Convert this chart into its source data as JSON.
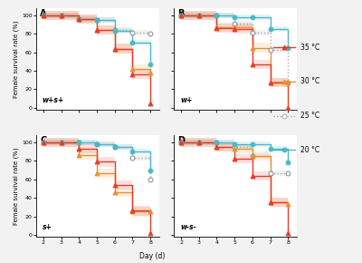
{
  "panels": {
    "A": {
      "label": "w+s+",
      "35": {
        "x": [
          2,
          3,
          4,
          5,
          6,
          7,
          8
        ],
        "y": [
          100,
          100,
          96,
          84,
          64,
          36,
          5
        ]
      },
      "30": {
        "x": [
          2,
          3,
          4,
          5,
          6,
          7,
          8
        ],
        "y": [
          100,
          100,
          96,
          84,
          64,
          42,
          38
        ]
      },
      "25": {
        "x": [
          2,
          3,
          4,
          5,
          6,
          7,
          8
        ],
        "y": [
          100,
          100,
          96,
          95,
          84,
          81,
          80
        ]
      },
      "20": {
        "x": [
          2,
          3,
          4,
          5,
          6,
          7,
          8
        ],
        "y": [
          100,
          100,
          96,
          95,
          83,
          70,
          47
        ]
      }
    },
    "B": {
      "label": "w+",
      "35": {
        "x": [
          2,
          3,
          4,
          5,
          6,
          7,
          8
        ],
        "y": [
          100,
          100,
          86,
          85,
          47,
          27,
          0
        ]
      },
      "30": {
        "x": [
          2,
          3,
          4,
          5,
          6,
          7,
          8
        ],
        "y": [
          100,
          100,
          87,
          87,
          65,
          27,
          27
        ]
      },
      "25": {
        "x": [
          2,
          3,
          4,
          5,
          6,
          7,
          8
        ],
        "y": [
          100,
          100,
          100,
          91,
          81,
          63,
          27
        ]
      },
      "20": {
        "x": [
          2,
          3,
          4,
          5,
          6,
          7,
          8
        ],
        "y": [
          100,
          100,
          100,
          98,
          98,
          85,
          65
        ]
      }
    },
    "C": {
      "label": "s+",
      "35": {
        "x": [
          2,
          3,
          4,
          5,
          6,
          7,
          8
        ],
        "y": [
          100,
          100,
          93,
          79,
          54,
          26,
          2
        ]
      },
      "30": {
        "x": [
          2,
          3,
          4,
          5,
          6,
          7,
          8
        ],
        "y": [
          100,
          100,
          86,
          67,
          46,
          25,
          25
        ]
      },
      "25": {
        "x": [
          2,
          3,
          4,
          5,
          6,
          7,
          8
        ],
        "y": [
          100,
          100,
          100,
          98,
          95,
          83,
          60
        ]
      },
      "20": {
        "x": [
          2,
          3,
          4,
          5,
          6,
          7,
          8
        ],
        "y": [
          100,
          100,
          100,
          98,
          95,
          90,
          70
        ]
      }
    },
    "D": {
      "label": "w-s-",
      "35": {
        "x": [
          2,
          3,
          4,
          5,
          6,
          7,
          8
        ],
        "y": [
          100,
          100,
          95,
          82,
          64,
          35,
          2
        ]
      },
      "30": {
        "x": [
          2,
          3,
          4,
          5,
          6,
          7,
          8
        ],
        "y": [
          100,
          100,
          95,
          93,
          85,
          35,
          33
        ]
      },
      "25": {
        "x": [
          2,
          3,
          4,
          5,
          6,
          7,
          8
        ],
        "y": [
          100,
          100,
          100,
          95,
          85,
          67,
          67
        ]
      },
      "20": {
        "x": [
          2,
          3,
          4,
          5,
          6,
          7,
          8
        ],
        "y": [
          100,
          100,
          100,
          98,
          98,
          93,
          78
        ]
      }
    }
  },
  "colors": {
    "35": "#e8392a",
    "30": "#e89030",
    "25": "#aaaaaa",
    "20": "#4ab8c8"
  },
  "ci_alpha": 0.15,
  "bg_color": "#f2f2f2",
  "panel_bg": "#ffffff"
}
